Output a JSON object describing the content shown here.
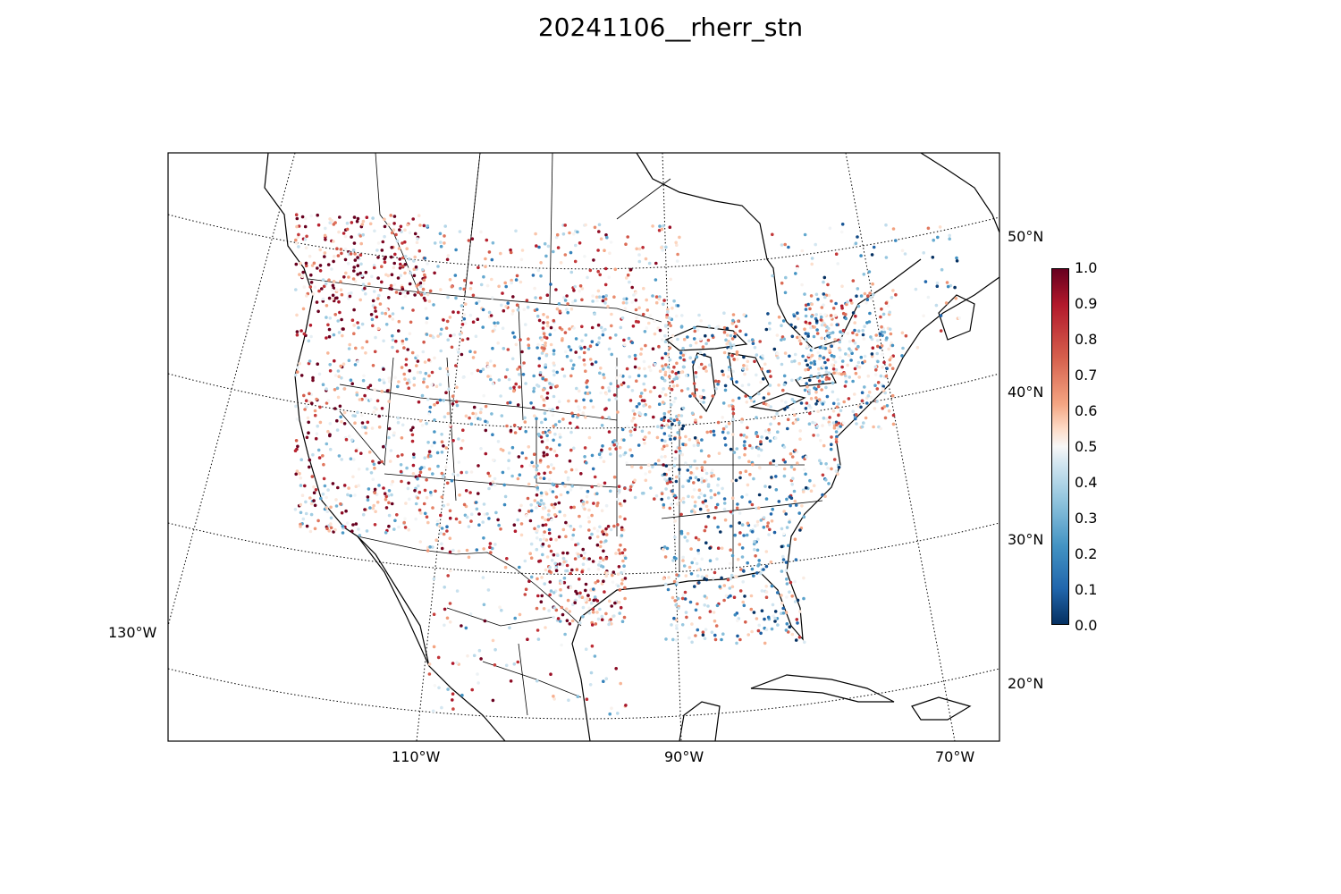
{
  "title": "20241106__rherr_stn",
  "map": {
    "projection": "lambert-conformal",
    "coastlines": true,
    "state_borders": true,
    "country_borders": true,
    "graticule": "dotted",
    "lat_labels": [
      "50°N",
      "40°N",
      "30°N",
      "20°N"
    ],
    "lon_labels": [
      "110°W",
      "90°W",
      "70°W"
    ],
    "lon_label_left": "130°W"
  },
  "colorbar": {
    "colormap": "RdBu_r",
    "min": 0.0,
    "max": 1.0,
    "ticks": [
      "1.0",
      "0.9",
      "0.8",
      "0.7",
      "0.6",
      "0.5",
      "0.4",
      "0.3",
      "0.2",
      "0.1",
      "0.0"
    ],
    "colors": {
      "low": "#053061",
      "mid": "#f7f7f7",
      "high": "#67001f"
    }
  },
  "stations": {
    "marker": "dot",
    "description_of_pattern": "high values (red) dominant in Pacific Northwest, northern Rockies, California coast, central Texas; low values (blue) scattered in Colorado, Midwest, Southeast"
  }
}
